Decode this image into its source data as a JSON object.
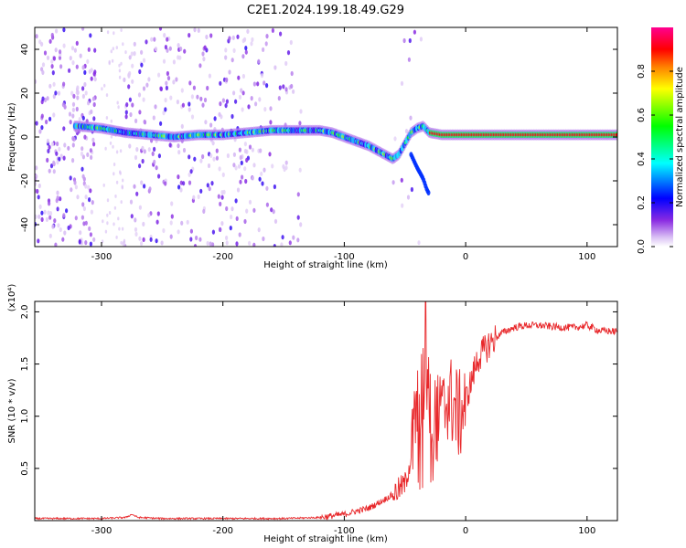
{
  "title": "C2E1.2024.199.18.49.G29",
  "chart_data": [
    {
      "type": "heatmap",
      "xlabel": "Height of straight line (km)",
      "ylabel": "Frequency (Hz)",
      "xlim": [
        -355,
        125
      ],
      "ylim": [
        -50,
        50
      ],
      "x_ticks": [
        -300,
        -200,
        -100,
        0,
        100
      ],
      "y_ticks": [
        -40,
        -20,
        0,
        20,
        40
      ],
      "colorbar": {
        "label": "Normalized spectral amplitude",
        "range": [
          0.0,
          1.0
        ],
        "ticks": [
          0.0,
          0.2,
          0.4,
          0.6,
          0.8
        ],
        "colormap": [
          "#ffffff",
          "#dcc4f5",
          "#8a2be2",
          "#0000ff",
          "#00ffff",
          "#00ff00",
          "#ffff00",
          "#ff8000",
          "#ff0000",
          "#ff0090"
        ]
      },
      "ridge": {
        "x": [
          -320,
          -300,
          -280,
          -260,
          -240,
          -220,
          -200,
          -180,
          -160,
          -140,
          -120,
          -110,
          -100,
          -90,
          -80,
          -70,
          -60,
          -55,
          -50,
          -45,
          -40,
          -35,
          -30,
          -20,
          -10,
          0,
          20,
          40,
          60,
          80,
          100,
          125
        ],
        "frequency": [
          5,
          4,
          2,
          1,
          0,
          1,
          1,
          2,
          3,
          3,
          3,
          2,
          0,
          -2,
          -4,
          -7,
          -10,
          -8,
          -3,
          2,
          4,
          5,
          2,
          1,
          1,
          1,
          1,
          1,
          1,
          1,
          1,
          1
        ]
      },
      "secondary_trace": {
        "x": [
          -45,
          -40,
          -35,
          -32,
          -30
        ],
        "frequency": [
          -8,
          -14,
          -19,
          -24,
          -26
        ]
      }
    },
    {
      "type": "line",
      "xlabel": "Height of straight line (km)",
      "ylabel": "SNR (10 * v/v)",
      "y_scale_label": "(x10⁴)",
      "xlim": [
        -355,
        125
      ],
      "ylim": [
        0,
        2.1
      ],
      "x_ticks": [
        -300,
        -200,
        -100,
        0,
        100
      ],
      "y_ticks": [
        0.5,
        1.0,
        1.5,
        2.0
      ],
      "color": "#e8282b",
      "series": [
        {
          "x": [
            -355,
            -300,
            -280,
            -275,
            -270,
            -250,
            -200,
            -150,
            -120,
            -100,
            -90,
            -80,
            -70,
            -60,
            -50,
            -45,
            -40,
            -35,
            -30,
            -25,
            -20,
            -15,
            -10,
            -5,
            0,
            5,
            10,
            20,
            30,
            40,
            50,
            60,
            70,
            80,
            90,
            100,
            110,
            125
          ],
          "values": [
            0.02,
            0.02,
            0.03,
            0.06,
            0.03,
            0.02,
            0.02,
            0.02,
            0.03,
            0.06,
            0.09,
            0.12,
            0.18,
            0.25,
            0.35,
            0.6,
            1.1,
            1.3,
            1.15,
            1.0,
            0.95,
            1.2,
            1.1,
            1.0,
            1.15,
            1.35,
            1.55,
            1.7,
            1.8,
            1.85,
            1.87,
            1.87,
            1.86,
            1.85,
            1.85,
            1.87,
            1.82,
            1.81
          ]
        }
      ]
    }
  ]
}
